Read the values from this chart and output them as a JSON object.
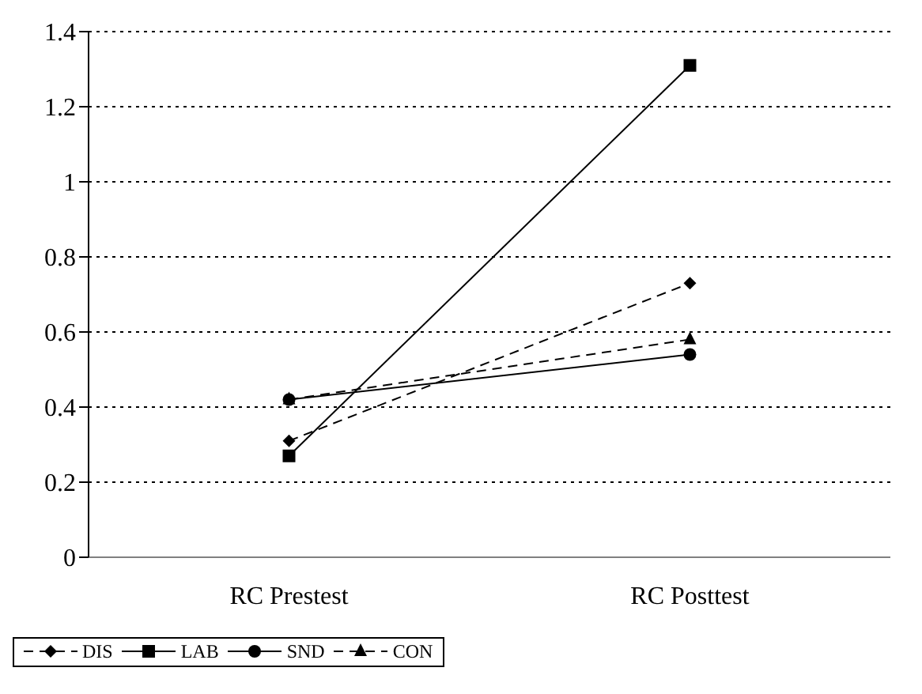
{
  "chart_data": {
    "type": "line",
    "categories": [
      "RC Prestest",
      "RC Posttest"
    ],
    "series": [
      {
        "name": "DIS",
        "color": "#000000",
        "values": [
          0.31,
          0.73
        ],
        "marker": "diamond",
        "line_style": "dashed"
      },
      {
        "name": "LAB",
        "color": "#000000",
        "values": [
          0.27,
          1.31
        ],
        "marker": "square",
        "line_style": "solid"
      },
      {
        "name": "SND",
        "color": "#000000",
        "values": [
          0.42,
          0.54
        ],
        "marker": "circle",
        "line_style": "solid"
      },
      {
        "name": "CON",
        "color": "#000000",
        "values": [
          0.42,
          0.58
        ],
        "marker": "triangle",
        "line_style": "dashed"
      }
    ],
    "ylim": [
      0,
      1.4
    ],
    "yticks": [
      0,
      0.2,
      0.4,
      0.6,
      0.8,
      1,
      1.2,
      1.4
    ],
    "grid": "y",
    "legend": "bottom"
  }
}
